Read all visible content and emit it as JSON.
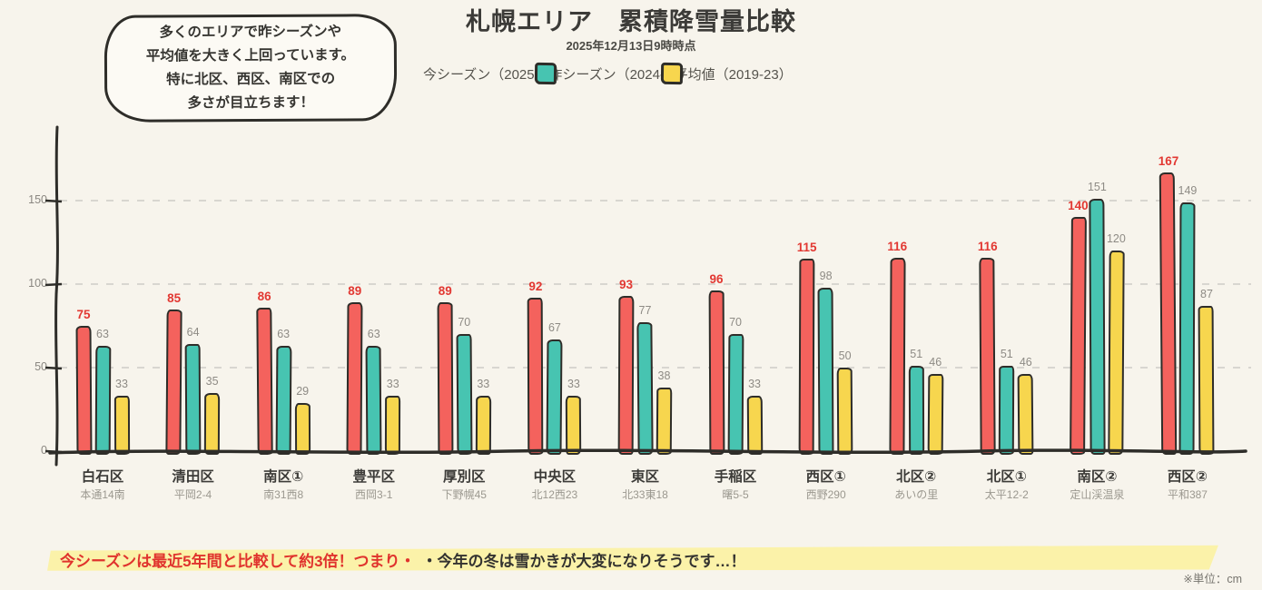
{
  "title": "札幌エリア　累積降雪量比較",
  "subtitle": "2025年12月13日9時時点",
  "bubble": {
    "lines": [
      "多くのエリアで昨シーズンや",
      "平均値を大きく上回っています。",
      "特に北区、西区、南区での",
      "多さが目立ちます！"
    ]
  },
  "banner": {
    "red_text": "今シーズンは最近5年間と比較して約3倍！つまり・",
    "dark_text": "・今年の冬は雪かきが大変になりそうです…！"
  },
  "unit_note": "※単位：cm",
  "colors": {
    "background": "#f7f4ec",
    "outline": "#2e2d29",
    "series_red": "#f4625d",
    "series_teal": "#47c4b1",
    "series_yellow": "#f7d64e",
    "red_label": "#e23832",
    "gray_label": "#8e8b85",
    "highlight": "#fbf2a9",
    "gridline": "#d8d6d0"
  },
  "chart_data": {
    "type": "bar",
    "title": "札幌エリア　累積降雪量比較",
    "subtitle": "2025年12月13日9時時点",
    "unit": "cm",
    "ylabel": "",
    "xlabel": "",
    "ylim": [
      0,
      185
    ],
    "y_ticks": [
      0,
      50,
      100,
      150
    ],
    "grid": "horizontal dashed",
    "legend_position": "top center",
    "style": "hand-drawn (xkcd-like)",
    "categories": [
      {
        "name": "白石区",
        "location": "本通14南"
      },
      {
        "name": "清田区",
        "location": "平岡2-4"
      },
      {
        "name": "南区①",
        "location": "南31西8"
      },
      {
        "name": "豊平区",
        "location": "西岡3-1"
      },
      {
        "name": "厚別区",
        "location": "下野幌45"
      },
      {
        "name": "中央区",
        "location": "北12西23"
      },
      {
        "name": "東区",
        "location": "北33東18"
      },
      {
        "name": "手稲区",
        "location": "曙5-5"
      },
      {
        "name": "西区①",
        "location": "西野290"
      },
      {
        "name": "北区②",
        "location": "あいの里"
      },
      {
        "name": "北区①",
        "location": "太平12-2"
      },
      {
        "name": "南区②",
        "location": "定山渓温泉"
      },
      {
        "name": "西区②",
        "location": "平和387"
      }
    ],
    "series": [
      {
        "name": "今シーズン（2025-26）",
        "color": "#f4625d",
        "label_color": "#e23832",
        "values": [
          75,
          85,
          86,
          89,
          89,
          92,
          93,
          96,
          115,
          116,
          116,
          140,
          167
        ]
      },
      {
        "name": "昨シーズン（2024-25）",
        "color": "#47c4b1",
        "label_color": "#8e8b85",
        "values": [
          63,
          64,
          63,
          63,
          70,
          67,
          77,
          70,
          98,
          51,
          51,
          151,
          149
        ]
      },
      {
        "name": "平均値（2019-23）",
        "color": "#f7d64e",
        "label_color": "#8e8b85",
        "values": [
          33,
          35,
          29,
          33,
          33,
          33,
          38,
          33,
          50,
          46,
          46,
          120,
          87
        ]
      }
    ]
  }
}
